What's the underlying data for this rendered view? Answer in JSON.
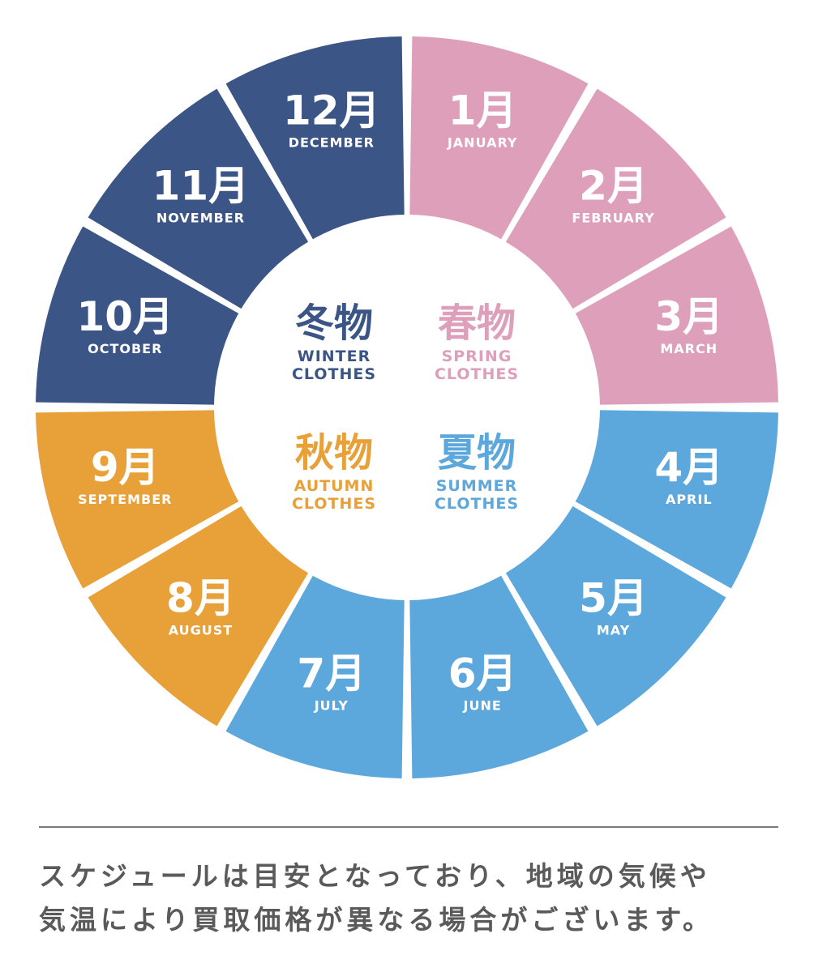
{
  "colors": {
    "winter": "#3a5586",
    "spring": "#de9fba",
    "summer": "#5ca7dc",
    "autumn": "#e8a038",
    "center": "#ffffff",
    "text_gray": "#5a5a5a"
  },
  "months": [
    {
      "index": 1,
      "label": "1月",
      "en": "JANUARY",
      "season": "spring"
    },
    {
      "index": 2,
      "label": "2月",
      "en": "FEBRUARY",
      "season": "spring"
    },
    {
      "index": 3,
      "label": "3月",
      "en": "MARCH",
      "season": "spring"
    },
    {
      "index": 4,
      "label": "4月",
      "en": "APRIL",
      "season": "summer"
    },
    {
      "index": 5,
      "label": "5月",
      "en": "MAY",
      "season": "summer"
    },
    {
      "index": 6,
      "label": "6月",
      "en": "JUNE",
      "season": "summer"
    },
    {
      "index": 7,
      "label": "7月",
      "en": "JULY",
      "season": "summer"
    },
    {
      "index": 8,
      "label": "8月",
      "en": "AUGUST",
      "season": "autumn"
    },
    {
      "index": 9,
      "label": "9月",
      "en": "SEPTEMBER",
      "season": "autumn"
    },
    {
      "index": 10,
      "label": "10月",
      "en": "OCTOBER",
      "season": "winter"
    },
    {
      "index": 11,
      "label": "11月",
      "en": "NOVEMBER",
      "season": "winter"
    },
    {
      "index": 12,
      "label": "12月",
      "en": "DECEMBER",
      "season": "winter"
    }
  ],
  "seasons": {
    "winter": {
      "jp": "冬物",
      "en1": "WINTER",
      "en2": "CLOTHES"
    },
    "spring": {
      "jp": "春物",
      "en1": "SPRING",
      "en2": "CLOTHES"
    },
    "autumn": {
      "jp": "秋物",
      "en1": "AUTUMN",
      "en2": "CLOTHES"
    },
    "summer": {
      "jp": "夏物",
      "en1": "SUMMER",
      "en2": "CLOTHES"
    }
  },
  "note": {
    "line1": "スケジュールは目安となっており、地域の気候や",
    "line2": "気温により買取価格が異なる場合がございます。"
  }
}
